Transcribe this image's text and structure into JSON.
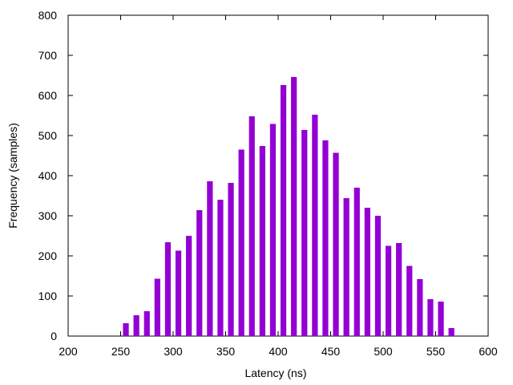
{
  "chart_data": {
    "type": "bar",
    "title": "",
    "xlabel": "Latency (ns)",
    "ylabel": "Frequency (samples)",
    "xlim": [
      200,
      600
    ],
    "ylim": [
      0,
      800
    ],
    "xticks": [
      200,
      250,
      300,
      350,
      400,
      450,
      500,
      550,
      600
    ],
    "yticks": [
      0,
      100,
      200,
      300,
      400,
      500,
      600,
      700,
      800
    ],
    "grid": false,
    "legend": "none",
    "bar_color": "#9400d3",
    "x": [
      255,
      265,
      275,
      285,
      295,
      305,
      315,
      325,
      335,
      345,
      355,
      365,
      375,
      385,
      395,
      405,
      415,
      425,
      435,
      445,
      455,
      465,
      475,
      485,
      495,
      505,
      515,
      525,
      535,
      545,
      555,
      565
    ],
    "values": [
      32,
      52,
      62,
      143,
      234,
      213,
      250,
      314,
      386,
      340,
      382,
      465,
      548,
      474,
      529,
      626,
      646,
      514,
      552,
      488,
      457,
      344,
      370,
      320,
      300,
      225,
      232,
      175,
      142,
      92,
      86,
      20
    ]
  }
}
